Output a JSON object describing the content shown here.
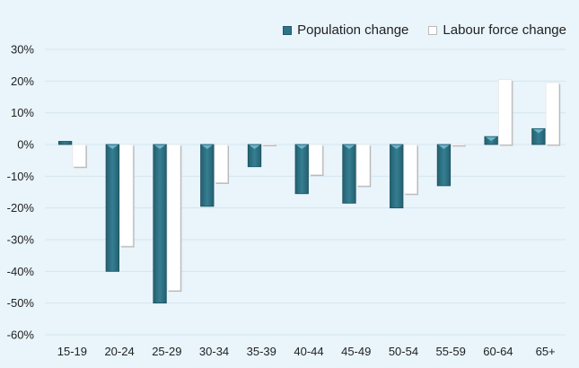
{
  "chart_data": {
    "type": "bar",
    "title": "",
    "xlabel": "",
    "ylabel": "",
    "categories": [
      "15-19",
      "20-24",
      "25-29",
      "30-34",
      "35-39",
      "40-44",
      "45-49",
      "50-54",
      "55-59",
      "60-64",
      "65+"
    ],
    "series": [
      {
        "name": "Population change",
        "color": "#2e7387",
        "values": [
          1,
          -40,
          -50,
          -19.5,
          -7,
          -15.5,
          -18.5,
          -20,
          -13,
          2.5,
          5
        ]
      },
      {
        "name": "Labour force change",
        "color": "#ffffff",
        "values": [
          -7,
          -32,
          -46,
          -12,
          0.3,
          -9.5,
          -13,
          -15.5,
          0.2,
          20.5,
          19.5
        ]
      }
    ],
    "ylim": [
      -60,
      30
    ],
    "yticks": [
      30,
      20,
      10,
      0,
      -10,
      -20,
      -30,
      -40,
      -50,
      -60
    ],
    "ytick_labels": [
      "30%",
      "20%",
      "10%",
      "0%",
      "-10%",
      "-20%",
      "-30%",
      "-40%",
      "-50%",
      "-60%"
    ],
    "grid": true,
    "legend_position": "top-right"
  },
  "legend": {
    "items": [
      {
        "label": "Population change"
      },
      {
        "label": "Labour force change"
      }
    ]
  }
}
